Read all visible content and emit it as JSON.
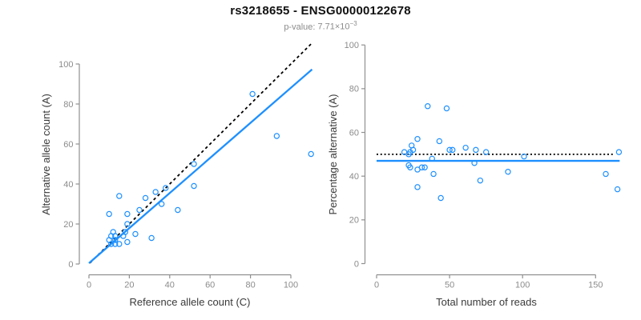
{
  "header": {
    "title": "rs3218655 - ENSG00000122678",
    "subtitle_prefix": "p-value:",
    "subtitle_mantissa": "7.71",
    "subtitle_times": "×10",
    "subtitle_exponent": "−3"
  },
  "colors": {
    "accent_blue": "#1E90FF",
    "axis_gray": "#909090",
    "tick_label_gray": "#8c8c8c",
    "axis_title_dark": "#3a3a3a",
    "reference_line_black": "#000000"
  },
  "chart_data": [
    {
      "type": "scatter",
      "name": "allele-counts",
      "xlabel": "Reference allele count (C)",
      "ylabel": "Alternative allele count (A)",
      "xlim": [
        0,
        112
      ],
      "ylim": [
        0,
        110
      ],
      "xticks": [
        0,
        20,
        40,
        60,
        80,
        100
      ],
      "yticks": [
        0,
        20,
        40,
        60,
        80,
        100
      ],
      "marker": "open-circle",
      "points": [
        [
          10,
          25
        ],
        [
          15,
          34
        ],
        [
          19,
          25
        ],
        [
          25,
          27
        ],
        [
          19,
          20
        ],
        [
          12,
          16
        ],
        [
          18,
          16
        ],
        [
          23,
          15
        ],
        [
          11,
          14
        ],
        [
          13,
          14
        ],
        [
          17,
          14
        ],
        [
          10,
          12
        ],
        [
          13,
          12
        ],
        [
          19,
          11
        ],
        [
          11,
          10
        ],
        [
          13,
          10
        ],
        [
          15,
          10
        ],
        [
          31,
          13
        ],
        [
          28,
          33
        ],
        [
          33,
          36
        ],
        [
          38,
          38
        ],
        [
          36,
          30
        ],
        [
          44,
          27
        ],
        [
          52,
          50
        ],
        [
          52,
          39
        ],
        [
          81,
          85
        ],
        [
          93,
          64
        ],
        [
          110,
          55
        ]
      ],
      "lines": [
        {
          "name": "identity-line",
          "style": "dashed",
          "color": "#000000",
          "slope": 1,
          "intercept": 0,
          "x_range": [
            0.5,
            110
          ]
        },
        {
          "name": "regression-line",
          "style": "solid",
          "color": "#1E90FF",
          "slope": 0.877,
          "intercept": 0.4,
          "x_range": [
            0,
            110.5
          ]
        }
      ]
    },
    {
      "type": "scatter",
      "name": "percentage-vs-reads",
      "xlabel": "Total number of reads",
      "ylabel": "Percentage alternative (A)",
      "xlim": [
        0,
        167
      ],
      "ylim": [
        0,
        100
      ],
      "xticks": [
        0,
        50,
        100,
        150
      ],
      "yticks": [
        0,
        20,
        40,
        60,
        80,
        100
      ],
      "marker": "open-circle",
      "points": [
        [
          35,
          72
        ],
        [
          48,
          71
        ],
        [
          28,
          57
        ],
        [
          43,
          56
        ],
        [
          24,
          54
        ],
        [
          61,
          53
        ],
        [
          25,
          52
        ],
        [
          50,
          52
        ],
        [
          52,
          52
        ],
        [
          68,
          52
        ],
        [
          19,
          51
        ],
        [
          23,
          51
        ],
        [
          75,
          51
        ],
        [
          166,
          51
        ],
        [
          22,
          50
        ],
        [
          101,
          49
        ],
        [
          38,
          48
        ],
        [
          67,
          46
        ],
        [
          22,
          45
        ],
        [
          23,
          44
        ],
        [
          28,
          43
        ],
        [
          31,
          44
        ],
        [
          33,
          44
        ],
        [
          90,
          42
        ],
        [
          39,
          41
        ],
        [
          157,
          41
        ],
        [
          71,
          38
        ],
        [
          28,
          35
        ],
        [
          165,
          34
        ],
        [
          44,
          30
        ]
      ],
      "lines": [
        {
          "name": "expected-50pct-line",
          "style": "dotted",
          "color": "#000000",
          "slope": 0,
          "intercept": 50,
          "x_range": [
            0,
            163
          ]
        },
        {
          "name": "fitted-percentage-line",
          "style": "solid",
          "color": "#1E90FF",
          "slope": 0,
          "intercept": 47,
          "x_range": [
            0,
            166.5
          ]
        }
      ]
    }
  ]
}
